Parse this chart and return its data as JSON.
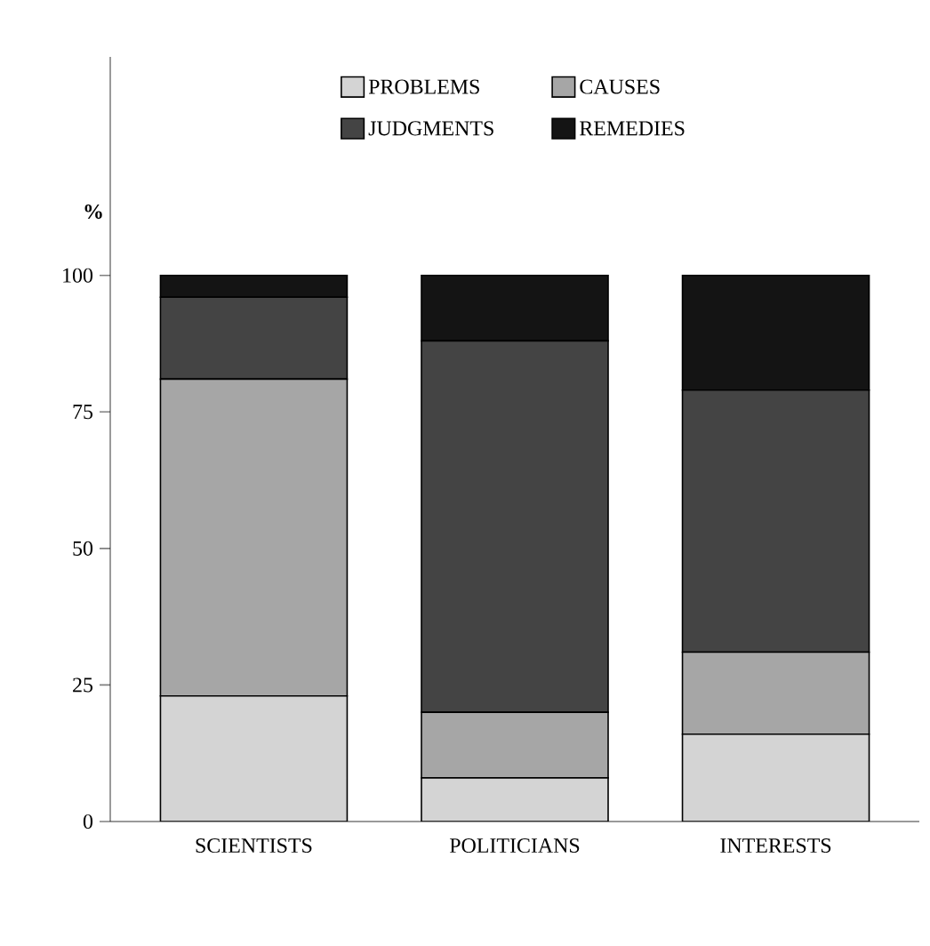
{
  "chart_data": {
    "type": "bar",
    "stacked": true,
    "ylabel": "%",
    "categories": [
      "SCIENTISTS",
      "POLITICIANS",
      "INTERESTS"
    ],
    "series": [
      {
        "name": "PROBLEMS",
        "color": "#d4d4d4",
        "values": [
          23,
          8,
          16
        ]
      },
      {
        "name": "CAUSES",
        "color": "#a6a6a6",
        "values": [
          58,
          12,
          15
        ]
      },
      {
        "name": "JUDGMENTS",
        "color": "#444444",
        "values": [
          15,
          68,
          48
        ]
      },
      {
        "name": "REMEDIES",
        "color": "#141414",
        "values": [
          4,
          12,
          21
        ]
      }
    ],
    "ylim": [
      0,
      140
    ],
    "yticks": [
      0,
      25,
      50,
      75,
      100
    ],
    "legend": "top",
    "grid": false
  }
}
